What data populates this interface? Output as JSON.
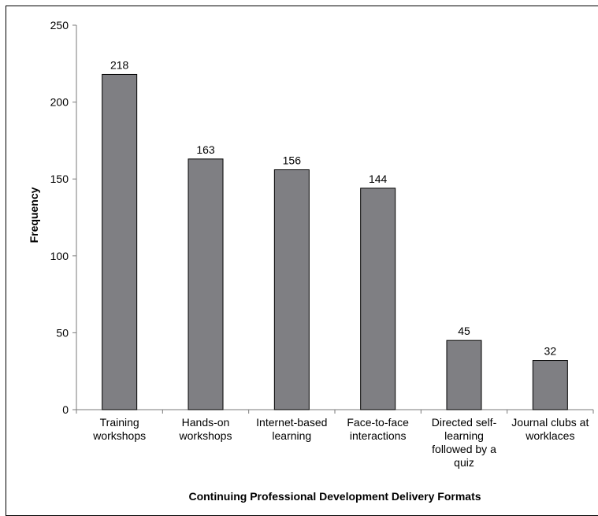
{
  "chart_data": {
    "type": "bar",
    "title": "",
    "xlabel": "Continuing Professional Development Delivery Formats",
    "ylabel": "Frequency",
    "ylim": [
      0,
      250
    ],
    "yticks": [
      0,
      50,
      100,
      150,
      200,
      250
    ],
    "grid": false,
    "legend": "none",
    "categories": [
      [
        "Training",
        "workshops"
      ],
      [
        "Hands-on",
        "workshops"
      ],
      [
        "Internet-based",
        "learning"
      ],
      [
        "Face-to-face",
        "interactions"
      ],
      [
        "Directed self-",
        "learning",
        "followed by a",
        "quiz"
      ],
      [
        "Journal clubs at",
        "worklaces"
      ]
    ],
    "values": [
      218,
      163,
      156,
      144,
      45,
      32
    ],
    "data_labels": [
      "218",
      "163",
      "156",
      "144",
      "45",
      "32"
    ],
    "colors": {
      "bar_fill": "#7f7f83",
      "bar_stroke": "#000000",
      "axis": "#7a7a7a",
      "frame": "#000000"
    }
  }
}
